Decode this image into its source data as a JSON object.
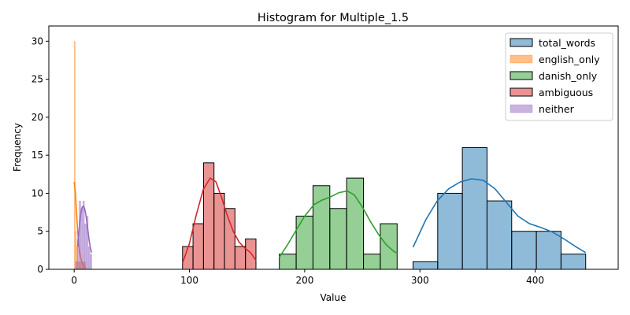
{
  "chart_data": {
    "type": "histogram",
    "title": "Histogram for Multiple_1.5",
    "xlabel": "Value",
    "ylabel": "Frequency",
    "xlim": [
      -22,
      472
    ],
    "ylim": [
      0,
      32
    ],
    "xticks": [
      0,
      100,
      200,
      300,
      400
    ],
    "yticks": [
      0,
      5,
      10,
      15,
      20,
      25,
      30
    ],
    "grid": false,
    "legend_position": "top-right",
    "series": [
      {
        "name": "total_words",
        "color": "#1f77b4",
        "bins": [
          {
            "x0": 294,
            "x1": 315.4,
            "count": 1
          },
          {
            "x0": 315.4,
            "x1": 336.8,
            "count": 10
          },
          {
            "x0": 336.8,
            "x1": 358.2,
            "count": 16
          },
          {
            "x0": 358.2,
            "x1": 379.6,
            "count": 9
          },
          {
            "x0": 379.6,
            "x1": 401,
            "count": 5
          },
          {
            "x0": 401,
            "x1": 422.4,
            "count": 5
          },
          {
            "x0": 422.4,
            "x1": 443.8,
            "count": 2
          }
        ],
        "kde": [
          [
            294,
            2.9
          ],
          [
            305,
            6.5
          ],
          [
            315,
            9.0
          ],
          [
            325,
            10.6
          ],
          [
            335,
            11.5
          ],
          [
            345,
            11.9
          ],
          [
            355,
            11.7
          ],
          [
            365,
            10.6
          ],
          [
            375,
            8.8
          ],
          [
            385,
            7.0
          ],
          [
            395,
            6.0
          ],
          [
            405,
            5.5
          ],
          [
            415,
            4.9
          ],
          [
            425,
            4.0
          ],
          [
            435,
            3.0
          ],
          [
            443.8,
            2.2
          ]
        ]
      },
      {
        "name": "english_only",
        "color": "#ff7f0e",
        "bins": [
          {
            "x0": 0,
            "x1": 1,
            "count": 30
          },
          {
            "x0": 1,
            "x1": 2,
            "count": 5
          },
          {
            "x0": 2,
            "x1": 3,
            "count": 3
          },
          {
            "x0": 3,
            "x1": 4,
            "count": 1
          },
          {
            "x0": 4,
            "x1": 5,
            "count": 1
          },
          {
            "x0": 5,
            "x1": 6,
            "count": 1
          },
          {
            "x0": 6,
            "x1": 7,
            "count": 1
          },
          {
            "x0": 7,
            "x1": 8,
            "count": 1
          },
          {
            "x0": 8,
            "x1": 9,
            "count": 1
          },
          {
            "x0": 9,
            "x1": 10,
            "count": 1
          }
        ],
        "kde": [
          [
            0,
            11.5
          ],
          [
            1,
            10.2
          ],
          [
            2,
            7.6
          ],
          [
            3,
            5.0
          ],
          [
            4,
            3.2
          ],
          [
            5,
            2.0
          ],
          [
            6,
            1.3
          ],
          [
            7,
            0.8
          ],
          [
            8,
            0.5
          ],
          [
            9,
            0.3
          ],
          [
            10,
            0.2
          ]
        ]
      },
      {
        "name": "danish_only",
        "color": "#2ca02c",
        "bins": [
          {
            "x0": 178,
            "x1": 192.6,
            "count": 2
          },
          {
            "x0": 192.6,
            "x1": 207.2,
            "count": 7
          },
          {
            "x0": 207.2,
            "x1": 221.8,
            "count": 11
          },
          {
            "x0": 221.8,
            "x1": 236.4,
            "count": 8
          },
          {
            "x0": 236.4,
            "x1": 251,
            "count": 12
          },
          {
            "x0": 251,
            "x1": 265.6,
            "count": 2
          },
          {
            "x0": 265.6,
            "x1": 280.2,
            "count": 6
          }
        ],
        "kde": [
          [
            178,
            1.6
          ],
          [
            185,
            3.2
          ],
          [
            192,
            5.0
          ],
          [
            200,
            7.0
          ],
          [
            208,
            8.5
          ],
          [
            215,
            9.1
          ],
          [
            222,
            9.5
          ],
          [
            230,
            10.1
          ],
          [
            237,
            10.3
          ],
          [
            243,
            9.8
          ],
          [
            250,
            8.2
          ],
          [
            257,
            6.3
          ],
          [
            264,
            4.6
          ],
          [
            271,
            3.2
          ],
          [
            277,
            2.4
          ],
          [
            280.2,
            2.1
          ]
        ]
      },
      {
        "name": "ambiguous",
        "color": "#d62728",
        "bins": [
          {
            "x0": 94,
            "x1": 103.1,
            "count": 3
          },
          {
            "x0": 103.1,
            "x1": 112.2,
            "count": 6
          },
          {
            "x0": 112.2,
            "x1": 121.3,
            "count": 14
          },
          {
            "x0": 121.3,
            "x1": 130.4,
            "count": 10
          },
          {
            "x0": 130.4,
            "x1": 139.5,
            "count": 8
          },
          {
            "x0": 139.5,
            "x1": 148.6,
            "count": 3
          },
          {
            "x0": 148.6,
            "x1": 157.7,
            "count": 4
          }
        ],
        "kde": [
          [
            94,
            0.8
          ],
          [
            100,
            3.4
          ],
          [
            106,
            7.2
          ],
          [
            112,
            10.5
          ],
          [
            118,
            12.0
          ],
          [
            123,
            11.5
          ],
          [
            128,
            9.4
          ],
          [
            133,
            7.0
          ],
          [
            138,
            5.0
          ],
          [
            143,
            3.6
          ],
          [
            148,
            2.8
          ],
          [
            153,
            2.2
          ],
          [
            157.7,
            1.2
          ]
        ]
      },
      {
        "name": "neither",
        "color": "#9467bd",
        "bins": [
          {
            "x0": 1,
            "x1": 2.6,
            "count": 1
          },
          {
            "x0": 2.6,
            "x1": 4.2,
            "count": 4
          },
          {
            "x0": 4.2,
            "x1": 5.8,
            "count": 9
          },
          {
            "x0": 5.8,
            "x1": 7.4,
            "count": 8
          },
          {
            "x0": 7.4,
            "x1": 9.0,
            "count": 9
          },
          {
            "x0": 9.0,
            "x1": 10.6,
            "count": 6
          },
          {
            "x0": 10.6,
            "x1": 12.2,
            "count": 7
          },
          {
            "x0": 12.2,
            "x1": 13.8,
            "count": 3
          },
          {
            "x0": 13.8,
            "x1": 15.4,
            "count": 2
          }
        ],
        "kde": [
          [
            3,
            3.0
          ],
          [
            4,
            4.8
          ],
          [
            5,
            6.5
          ],
          [
            6,
            7.6
          ],
          [
            7,
            8.2
          ],
          [
            8,
            8.3
          ],
          [
            9,
            8.0
          ],
          [
            10,
            7.3
          ],
          [
            11,
            6.2
          ],
          [
            12,
            5.0
          ],
          [
            13,
            3.8
          ],
          [
            14,
            2.9
          ],
          [
            15,
            2.2
          ]
        ]
      }
    ]
  }
}
